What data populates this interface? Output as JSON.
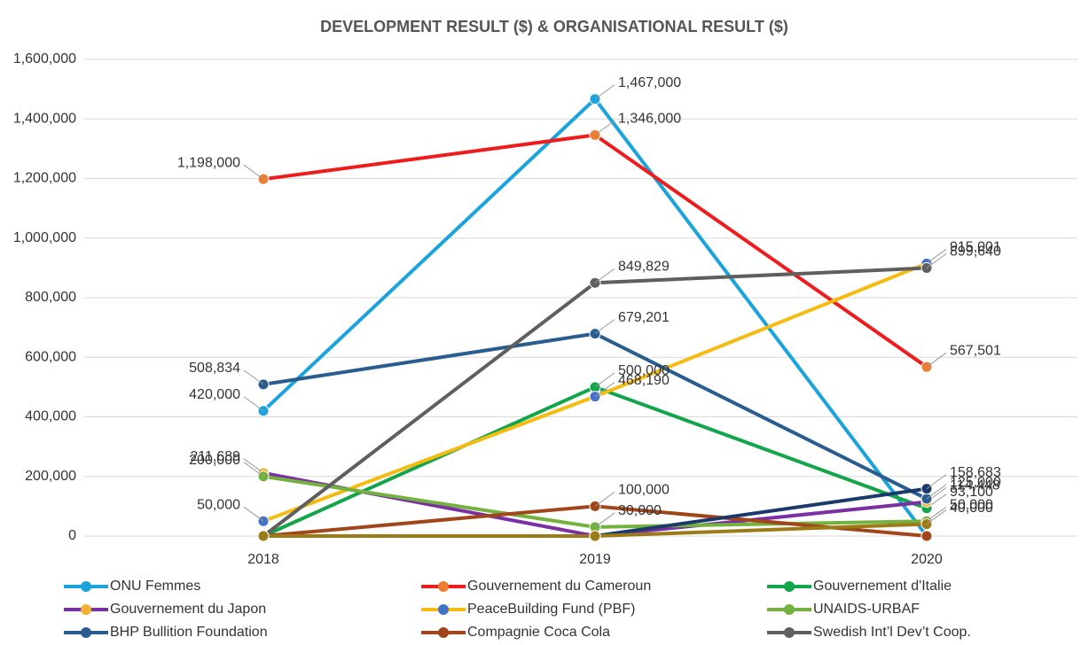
{
  "chart_data": {
    "type": "line",
    "title": "DEVELOPMENT RESULT ($) & ORGANISATIONAL RESULT ($)",
    "categories": [
      "2018",
      "2019",
      "2020"
    ],
    "ylim": [
      0,
      1600000
    ],
    "yticks": [
      0,
      {
        "value": 200000,
        "label": "200,000"
      },
      {
        "value": 400000,
        "label": "400,000"
      },
      {
        "value": 600000,
        "label": "600,000"
      },
      {
        "value": 800000,
        "label": "800,000"
      },
      {
        "value": 1000000,
        "label": "1,000,000"
      },
      {
        "value": 1200000,
        "label": "1,200,000"
      },
      {
        "value": 1400000,
        "label": "1,400,000"
      },
      {
        "value": 1600000,
        "label": "1,600,000"
      }
    ],
    "grid": true,
    "legend": "bottom",
    "series": [
      {
        "name": "ONU Femmes",
        "color": "#1aa3dc",
        "marker_color": "#1aa3dc",
        "values": [
          420000,
          1467000,
          0
        ],
        "value_labels": [
          "420,000",
          "1,467,000",
          null
        ]
      },
      {
        "name": "Gouvernement du Cameroun",
        "color": "#ee1c1c",
        "marker_color": "#ed7d31",
        "values": [
          1198000,
          1346000,
          567501
        ],
        "value_labels": [
          "1,198,000",
          "1,346,000",
          "567,501"
        ]
      },
      {
        "name": "Gouvernement d'Italie",
        "color": "#12a54a",
        "marker_color": "#12a54a",
        "values": [
          0,
          500000,
          93100
        ],
        "value_labels": [
          null,
          "500,000",
          "93,100"
        ]
      },
      {
        "name": "Gouvernement du Japon",
        "color": "#7a2fa3",
        "marker_color": "#f2b134",
        "values": [
          211689,
          0,
          114448
        ],
        "value_labels": [
          "211,689",
          null,
          "114,448"
        ]
      },
      {
        "name": "PeaceBuilding Fund (PBF)",
        "color": "#f5bb10",
        "marker_color": "#4472c4",
        "values": [
          50000,
          468190,
          915001
        ],
        "value_labels": [
          "50,000",
          "468,190",
          "915,001"
        ]
      },
      {
        "name": "UNAIDS-URBAF",
        "color": "#73b23e",
        "marker_color": "#73b23e",
        "values": [
          200000,
          30000,
          50000
        ],
        "value_labels": [
          "200,000",
          "30,000",
          "50,000"
        ]
      },
      {
        "name": "BHP Bullition Foundation",
        "color": "#2a5d8f",
        "marker_color": "#2a5d8f",
        "values": [
          508834,
          679201,
          125000
        ],
        "value_labels": [
          "508,834",
          "679,201",
          "125,000"
        ]
      },
      {
        "name": "Compagnie Coca Cola",
        "color": "#a0461a",
        "marker_color": "#a0461a",
        "values": [
          0,
          100000,
          0
        ],
        "value_labels": [
          null,
          "100,000",
          null
        ]
      },
      {
        "name": "Swedish Int’l Dev’t Coop.",
        "color": "#5f5f5f",
        "marker_color": "#5f5f5f",
        "values": [
          0,
          849829,
          899640
        ],
        "value_labels": [
          null,
          "849,829",
          "899,640"
        ]
      },
      {
        "color": "#1b3a6b",
        "marker_color": "#1b3a6b",
        "values": [
          0,
          0,
          158683
        ],
        "value_labels": [
          null,
          null,
          "158,683"
        ]
      },
      {
        "color": "#9c7a17",
        "marker_color": "#9c7a17",
        "values": [
          0,
          0,
          40000
        ],
        "value_labels": [
          null,
          null,
          "40,000"
        ]
      }
    ]
  }
}
